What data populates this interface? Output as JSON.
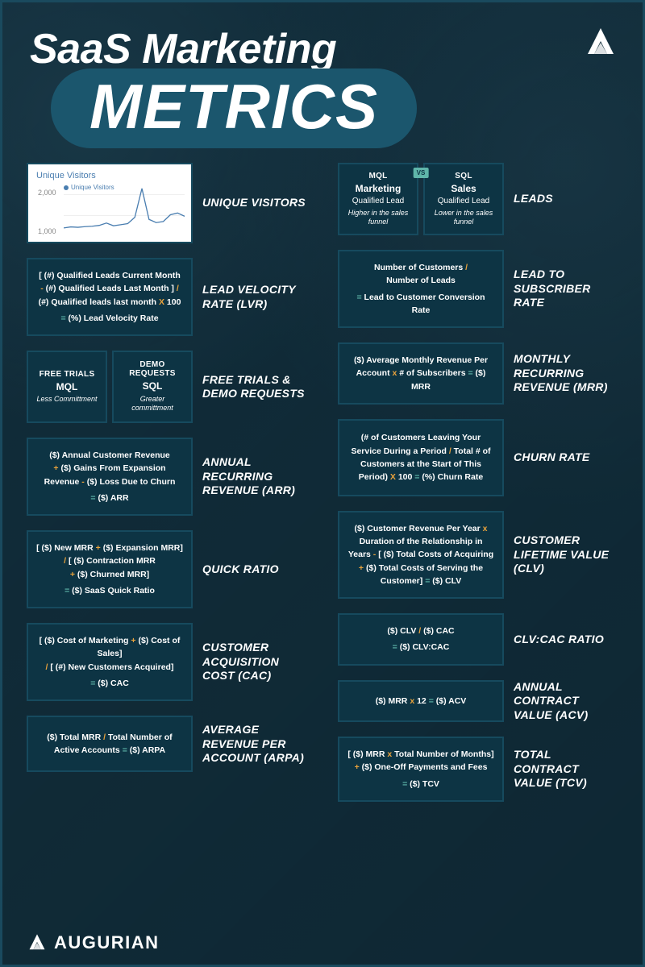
{
  "header": {
    "title_line1": "SaaS Marketing",
    "title_line2": "METRICS"
  },
  "brand": {
    "name": "AUGURIAN"
  },
  "colors": {
    "background": "#0f2834",
    "box_bg": "#0d3444",
    "box_border": "#164a5e",
    "pill_bg": "#1b566d",
    "text": "#ffffff",
    "op_orange": "#e8a23c",
    "op_teal": "#5fb6aa",
    "chart_line": "#4a7eb0"
  },
  "chart": {
    "title": "Unique Visitors",
    "legend": "Unique Visitors",
    "y_labels": [
      "2,000",
      "1,000"
    ],
    "points": [
      200,
      250,
      230,
      260,
      280,
      320,
      430,
      300,
      350,
      400,
      700,
      2050,
      600,
      450,
      500,
      820,
      900,
      750
    ]
  },
  "leads_box": {
    "vs": "VS",
    "left": {
      "top": "MQL",
      "mid_strong": "Marketing",
      "mid_tail": "Qualified Lead",
      "sub": "Higher in the sales funnel"
    },
    "right": {
      "top": "SQL",
      "mid_strong": "Sales",
      "mid_tail": "Qualified Lead",
      "sub": "Lower in the sales funnel"
    }
  },
  "trials_box": {
    "left": {
      "top": "FREE TRIALS",
      "mid": "MQL",
      "sub": "Less Committment"
    },
    "right": {
      "top": "DEMO REQUESTS",
      "mid": "SQL",
      "sub": "Greater committment"
    }
  },
  "labels": {
    "unique_visitors": "UNIQUE VISITORS",
    "leads": "LEADS",
    "lvr": "LEAD VELOCITY RATE (LVR)",
    "lead_to_sub": "LEAD TO SUBSCRIBER RATE",
    "trials": "FREE TRIALS & DEMO REQUESTS",
    "mrr": "MONTHLY RECURRING REVENUE (MRR)",
    "arr": "ANNUAL RECURRING REVENUE (ARR)",
    "churn": "CHURN RATE",
    "quick": "QUICK RATIO",
    "clv": "CUSTOMER LIFETIME VALUE (CLV)",
    "cac": "CUSTOMER ACQUISITION COST (CAC)",
    "clv_cac": "CLV:CAC RATIO",
    "arpa": "AVERAGE REVENUE PER ACCOUNT (ARPA)",
    "acv": "ANNUAL CONTRACT VALUE (ACV)",
    "tcv": "TOTAL CONTRACT VALUE (TCV)"
  },
  "formulas": {
    "lvr_l1": "[ (#) Qualified Leads Current Month",
    "lvr_l2a": "(#) Qualified Leads Last Month ]",
    "lvr_l3a": "(#) Qualified leads last month",
    "lvr_l3b": "100",
    "lvr_res": "(%) Lead Velocity Rate",
    "lead_sub_l1": "Number of Customers",
    "lead_sub_l2": "Number of Leads",
    "lead_sub_res": "Lead to Customer Conversion Rate",
    "mrr_l1a": "($) Average Monthly Revenue Per Account",
    "mrr_l1b": "# of Subscribers",
    "mrr_res": "($) MRR",
    "arr_l1": "($) Annual Customer Revenue",
    "arr_l2": "($) Gains From Expansion Revenue",
    "arr_l3": "($) Loss Due to Churn",
    "arr_res": "($) ARR",
    "churn_l1": "(# of Customers Leaving Your Service During a Period",
    "churn_l2": "Total # of Customers at the Start of This Period)",
    "churn_l3": "100",
    "churn_res": "(%) Churn Rate",
    "quick_l1a": "[ ($) New MRR",
    "quick_l1b": "($) Expansion MRR]",
    "quick_l2a": "[ ($) Contraction MRR",
    "quick_l2b": "($) Churned MRR]",
    "quick_res": "($) SaaS Quick Ratio",
    "clv_l1a": "($) Customer Revenue Per Year",
    "clv_l1b": "Duration of the Relationship in Years",
    "clv_l2a": "[ ($) Total Costs of Acquiring",
    "clv_l2b": "($) Total Costs of Serving the Customer]",
    "clv_res": "($) CLV",
    "cac_l1a": "[ ($) Cost of Marketing",
    "cac_l1b": "($) Cost of Sales]",
    "cac_l2": "[ (#) New Customers Acquired]",
    "cac_res": "($) CAC",
    "clvcac_l1a": "($) CLV",
    "clvcac_l1b": "($) CAC",
    "clvcac_res": "($) CLV:CAC",
    "acv_l1": "($) MRR",
    "acv_l2": "12",
    "acv_res": "($) ACV",
    "arpa_l1": "($) Total MRR",
    "arpa_l2": "Total Number of Active Accounts",
    "arpa_res": "($) ARPA",
    "tcv_l1a": "[ ($) MRR",
    "tcv_l1b": "Total Number of Months]",
    "tcv_l2": "($) One-Off Payments and Fees",
    "tcv_res": "($) TCV"
  }
}
